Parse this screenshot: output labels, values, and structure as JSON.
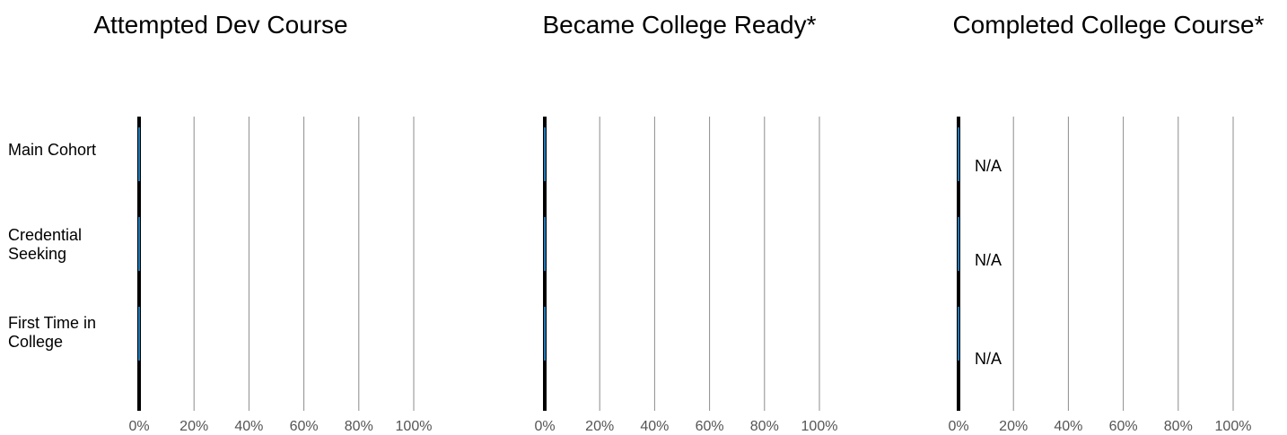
{
  "chart_data": {
    "type": "bar",
    "orientation": "horizontal",
    "categories": [
      "Main Cohort",
      "Credential Seeking",
      "First Time in College"
    ],
    "category_label_lines": [
      [
        "Main Cohort"
      ],
      [
        "Credential",
        "Seeking"
      ],
      [
        "First Time in",
        "College"
      ]
    ],
    "xlim": [
      0,
      100
    ],
    "x_ticks": [
      0,
      20,
      40,
      60,
      80,
      100
    ],
    "x_tick_labels": [
      "0%",
      "20%",
      "40%",
      "60%",
      "80%",
      "100%"
    ],
    "grid": true,
    "bar_color": "#1f77b4",
    "panels": [
      {
        "title": "Attempted Dev Course",
        "values": [
          0,
          0,
          0
        ],
        "value_labels": []
      },
      {
        "title": "Became College Ready*",
        "values": [
          0,
          0,
          0
        ],
        "value_labels": []
      },
      {
        "title": "Completed College Course*",
        "values": [
          0,
          0,
          0
        ],
        "value_labels": [
          "N/A",
          "N/A",
          "N/A"
        ]
      }
    ]
  }
}
